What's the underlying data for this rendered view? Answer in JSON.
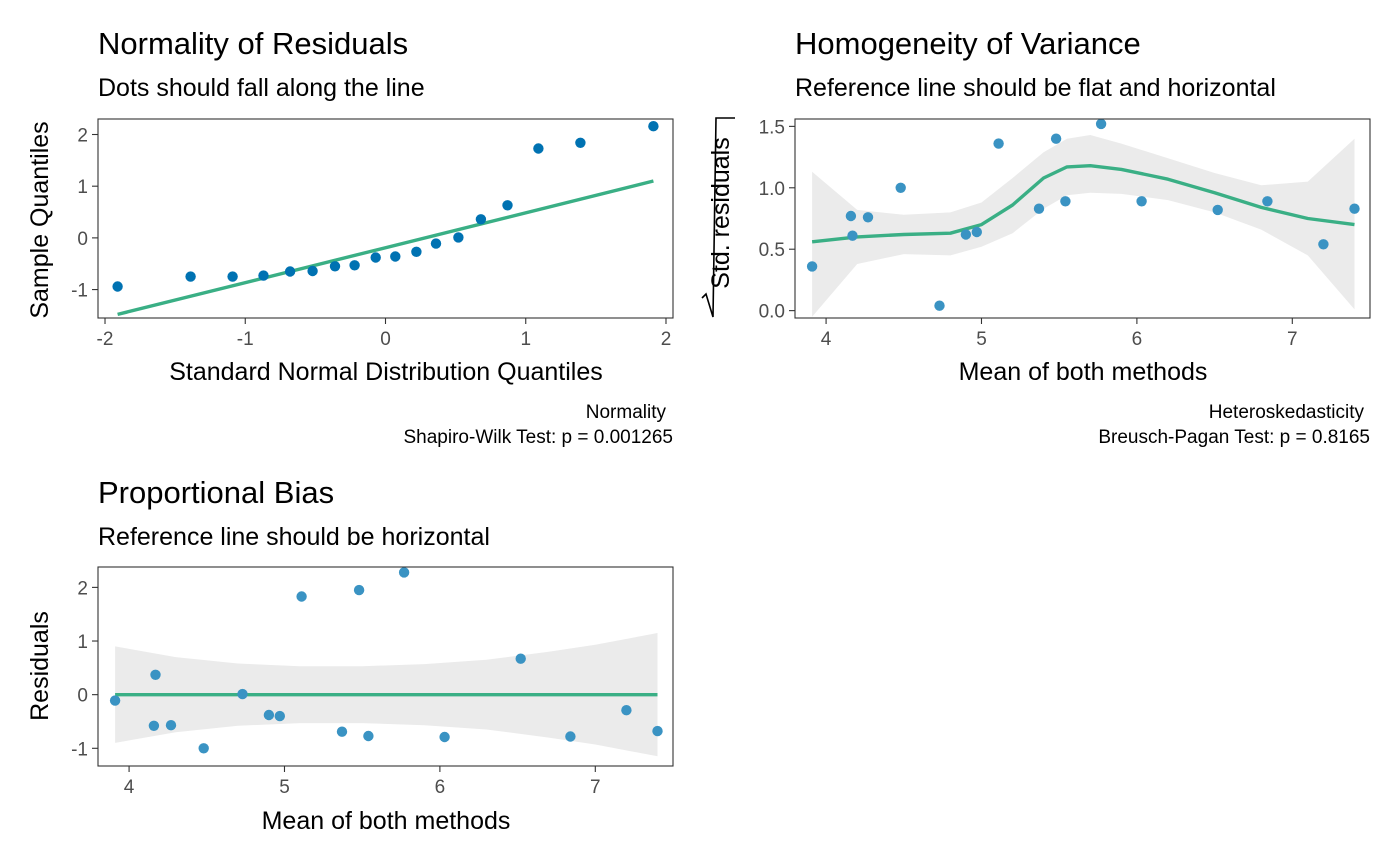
{
  "chart_data": [
    {
      "id": "normality",
      "type": "scatter",
      "title": "Normality of Residuals",
      "subtitle": "Dots should fall along the line",
      "xlabel": "Standard Normal Distribution Quantiles",
      "ylabel": "Sample Quantiles",
      "xlim": [
        -2.05,
        2.05
      ],
      "ylim": [
        -1.55,
        2.3
      ],
      "xticks": [
        -2,
        -1,
        0,
        1,
        2
      ],
      "xtick_labels": [
        "-2",
        "-1",
        "0",
        "1",
        "2"
      ],
      "yticks": [
        -1,
        0,
        1,
        2
      ],
      "ytick_labels": [
        "-1",
        "0",
        "1",
        "2"
      ],
      "points": {
        "x": [
          -1.91,
          -1.39,
          -1.09,
          -0.87,
          -0.68,
          -0.52,
          -0.36,
          -0.22,
          -0.07,
          0.07,
          0.22,
          0.36,
          0.52,
          0.68,
          0.87,
          1.09,
          1.39,
          1.91
        ],
        "y": [
          -0.94,
          -0.75,
          -0.75,
          -0.73,
          -0.65,
          -0.64,
          -0.55,
          -0.53,
          -0.38,
          -0.36,
          -0.27,
          -0.11,
          0.01,
          0.36,
          0.63,
          1.73,
          1.84,
          2.16
        ]
      },
      "reference_line": {
        "x": [
          -1.91,
          1.91
        ],
        "y": [
          -1.48,
          1.1
        ]
      },
      "caption": [
        "Normality",
        "Shapiro-Wilk Test: p = 0.001265"
      ],
      "grid": false
    },
    {
      "id": "homogeneity",
      "type": "scatter",
      "title": "Homogeneity of Variance",
      "subtitle": "Reference line should be flat and horizontal",
      "xlabel": "Mean of both methods",
      "ylabel": "Std. residuals",
      "xlim": [
        3.8,
        7.5
      ],
      "ylim": [
        -0.06,
        1.56
      ],
      "xticks": [
        4,
        5,
        6,
        7
      ],
      "xtick_labels": [
        "4",
        "5",
        "6",
        "7"
      ],
      "yticks": [
        0,
        0.5,
        1,
        1.5
      ],
      "ytick_labels": [
        "0.0",
        "0.5",
        "1.0",
        "1.5"
      ],
      "points": {
        "x": [
          3.91,
          4.16,
          4.17,
          4.27,
          4.48,
          4.73,
          4.9,
          4.97,
          5.11,
          5.37,
          5.48,
          5.54,
          5.77,
          6.03,
          6.52,
          6.84,
          7.2,
          7.4
        ],
        "y": [
          0.36,
          0.77,
          0.61,
          0.76,
          1.0,
          0.04,
          0.62,
          0.64,
          1.36,
          0.83,
          1.4,
          0.89,
          1.52,
          0.89,
          0.82,
          0.89,
          0.54,
          0.83
        ]
      },
      "smooth": {
        "x": [
          3.91,
          4.2,
          4.5,
          4.8,
          5.0,
          5.2,
          5.4,
          5.55,
          5.7,
          5.9,
          6.2,
          6.5,
          6.8,
          7.1,
          7.4
        ],
        "y": [
          0.56,
          0.6,
          0.62,
          0.63,
          0.7,
          0.86,
          1.08,
          1.17,
          1.18,
          1.15,
          1.07,
          0.96,
          0.84,
          0.75,
          0.7
        ]
      },
      "band": {
        "x": [
          3.91,
          4.2,
          4.5,
          4.8,
          5.0,
          5.2,
          5.4,
          5.55,
          5.7,
          5.9,
          6.2,
          6.5,
          6.8,
          7.1,
          7.4
        ],
        "lower": [
          -0.05,
          0.38,
          0.46,
          0.45,
          0.52,
          0.63,
          0.83,
          0.94,
          0.96,
          0.95,
          0.9,
          0.8,
          0.66,
          0.45,
          0.01
        ],
        "upper": [
          1.13,
          0.82,
          0.78,
          0.8,
          0.88,
          1.08,
          1.29,
          1.4,
          1.43,
          1.36,
          1.24,
          1.12,
          1.02,
          1.05,
          1.4
        ]
      },
      "caption": [
        "Heteroskedasticity",
        "Breusch-Pagan Test: p = 0.8165"
      ],
      "grid": false
    },
    {
      "id": "proportional-bias",
      "type": "scatter",
      "title": "Proportional Bias",
      "subtitle": "Reference line should be horizontal",
      "xlabel": "Mean of both methods",
      "ylabel": "Residuals",
      "xlim": [
        3.8,
        7.5
      ],
      "ylim": [
        -1.33,
        2.38
      ],
      "xticks": [
        4,
        5,
        6,
        7
      ],
      "xtick_labels": [
        "4",
        "5",
        "6",
        "7"
      ],
      "yticks": [
        -1,
        0,
        1,
        2
      ],
      "ytick_labels": [
        "-1",
        "0",
        "1",
        "2"
      ],
      "points": {
        "x": [
          3.91,
          4.16,
          4.17,
          4.27,
          4.48,
          4.73,
          4.9,
          4.97,
          5.11,
          5.37,
          5.48,
          5.54,
          5.77,
          6.03,
          6.52,
          6.84,
          7.2,
          7.4
        ],
        "y": [
          -0.11,
          -0.58,
          0.37,
          -0.57,
          -1.0,
          0.01,
          -0.38,
          -0.4,
          1.83,
          -0.69,
          1.95,
          -0.77,
          2.28,
          -0.79,
          0.67,
          -0.78,
          -0.29,
          -0.68
        ]
      },
      "smooth": {
        "x": [
          3.91,
          7.4
        ],
        "y": [
          0.0,
          0.0
        ]
      },
      "band": {
        "x": [
          3.91,
          4.3,
          4.7,
          5.1,
          5.5,
          5.9,
          6.3,
          6.7,
          7.0,
          7.4
        ],
        "lower": [
          -0.9,
          -0.7,
          -0.58,
          -0.53,
          -0.53,
          -0.57,
          -0.65,
          -0.8,
          -0.93,
          -1.15
        ],
        "upper": [
          0.9,
          0.7,
          0.58,
          0.53,
          0.53,
          0.57,
          0.65,
          0.8,
          0.93,
          1.15
        ]
      },
      "grid": false
    }
  ],
  "colors": {
    "point": "#0072b2",
    "point_light": "#3a93c3",
    "line": "#3aaf85",
    "band": "#ebebeb",
    "tick_text": "#4d4d4d",
    "border": "#333333"
  }
}
